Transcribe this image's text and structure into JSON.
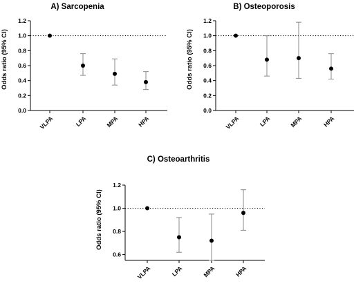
{
  "chart_data": [
    {
      "type": "scatter",
      "title": "A) Sarcopenia",
      "ylabel": "Odds ratio (95% CI)",
      "categories": [
        "VLPA",
        "LPA",
        "MPA",
        "HPA"
      ],
      "series": [
        {
          "values": [
            1.0,
            0.6,
            0.49,
            0.38
          ],
          "ci_low": [
            1.0,
            0.47,
            0.34,
            0.28
          ],
          "ci_high": [
            1.0,
            0.76,
            0.69,
            0.52
          ]
        }
      ],
      "ylim": [
        0.0,
        1.2
      ],
      "yticks": [
        0.0,
        0.2,
        0.4,
        0.6,
        0.8,
        1.0,
        1.2
      ],
      "ytick_labels": [
        "0.0",
        "0.2",
        "0.4",
        "0.6",
        "0.8",
        "1.0",
        "1.2"
      ],
      "reference_line": 1.0,
      "grid": false
    },
    {
      "type": "scatter",
      "title": "B) Osteoporosis",
      "ylabel": "Odds ratio (95% CI)",
      "categories": [
        "VLPA",
        "LPA",
        "MPA",
        "HPA"
      ],
      "series": [
        {
          "values": [
            1.0,
            0.68,
            0.7,
            0.56
          ],
          "ci_low": [
            1.0,
            0.46,
            0.43,
            0.42
          ],
          "ci_high": [
            1.0,
            1.0,
            1.18,
            0.76
          ]
        }
      ],
      "ylim": [
        0.0,
        1.2
      ],
      "yticks": [
        0.0,
        0.2,
        0.4,
        0.6,
        0.8,
        1.0,
        1.2
      ],
      "ytick_labels": [
        "0.0",
        "0.2",
        "0.4",
        "0.6",
        "0.8",
        "1.0",
        "1.2"
      ],
      "reference_line": 1.0,
      "grid": false
    },
    {
      "type": "scatter",
      "title": "C) Osteoarthritis",
      "ylabel": "Odds ratio (95% CI)",
      "categories": [
        "VLPA",
        "LPA",
        "MPA",
        "HPA"
      ],
      "series": [
        {
          "values": [
            1.0,
            0.75,
            0.72,
            0.96
          ],
          "ci_low": [
            1.0,
            0.62,
            0.55,
            0.81
          ],
          "ci_high": [
            1.0,
            0.92,
            0.95,
            1.16
          ]
        }
      ],
      "ylim": [
        0.55,
        1.2
      ],
      "yticks": [
        0.6,
        0.8,
        1.0,
        1.2
      ],
      "ytick_labels": [
        "0.6",
        "0.8",
        "1.0",
        "1.2"
      ],
      "reference_line": 1.0,
      "grid": false
    }
  ]
}
